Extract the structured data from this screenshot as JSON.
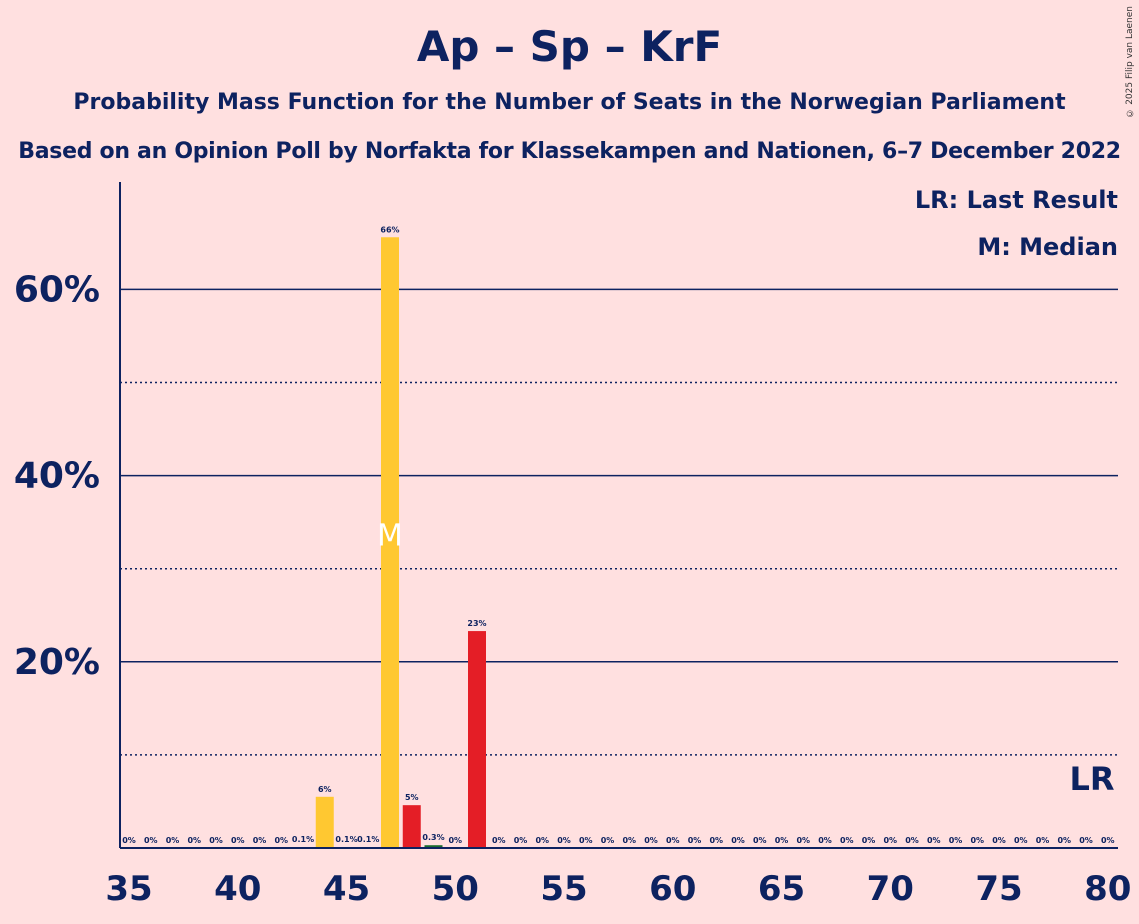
{
  "title": "Ap – Sp – KrF",
  "subtitle1": "Probability Mass Function for the Number of Seats in the Norwegian Parliament",
  "subtitle2": "Based on an Opinion Poll by Norfakta for Klassekampen and Nationen, 6–7 December 2022",
  "legend": {
    "last_result": "LR: Last Result",
    "median": "M: Median"
  },
  "copyright": "© 2025 Filip van Laenen",
  "colors": {
    "background": "#FFE0E0",
    "text": "#0D2260",
    "majority_bar": "#FFC831",
    "below_bar": "#E41E26",
    "minor_bar": "#1A6B2E"
  },
  "chart_data": {
    "type": "bar",
    "x": [
      35,
      36,
      37,
      38,
      39,
      40,
      41,
      42,
      43,
      44,
      45,
      46,
      47,
      48,
      49,
      50,
      51,
      52,
      53,
      54,
      55,
      56,
      57,
      58,
      59,
      60,
      61,
      62,
      63,
      64,
      65,
      66,
      67,
      68,
      69,
      70,
      71,
      72,
      73,
      74,
      75,
      76,
      77,
      78,
      79,
      80
    ],
    "values": [
      0,
      0,
      0,
      0,
      0,
      0,
      0,
      0,
      0.1,
      5.5,
      0.1,
      0.1,
      65.6,
      4.6,
      0.3,
      0,
      23.3,
      0,
      0,
      0,
      0,
      0,
      0,
      0,
      0,
      0,
      0,
      0,
      0,
      0,
      0,
      0,
      0,
      0,
      0,
      0,
      0,
      0,
      0,
      0,
      0,
      0,
      0,
      0,
      0,
      0
    ],
    "labels": [
      "0%",
      "0%",
      "0%",
      "0%",
      "0%",
      "0%",
      "0%",
      "0%",
      "0.1%",
      "6%",
      "0.1%",
      "0.1%",
      "66%",
      "5%",
      "0.3%",
      "0%",
      "23%",
      "0%",
      "0%",
      "0%",
      "0%",
      "0%",
      "0%",
      "0%",
      "0%",
      "0%",
      "0%",
      "0%",
      "0%",
      "0%",
      "0%",
      "0%",
      "0%",
      "0%",
      "0%",
      "0%",
      "0%",
      "0%",
      "0%",
      "0%",
      "0%",
      "0%",
      "0%",
      "0%",
      "0%",
      "0%"
    ],
    "bar_colors": [
      "#FFC831",
      "#FFC831",
      "#FFC831",
      "#FFC831",
      "#FFC831",
      "#FFC831",
      "#FFC831",
      "#FFC831",
      "#FFC831",
      "#FFC831",
      "#FFC831",
      "#FFC831",
      "#FFC831",
      "#E41E26",
      "#1A6B2E",
      "#E41E26",
      "#E41E26",
      "#E41E26",
      "#E41E26",
      "#E41E26",
      "#E41E26",
      "#E41E26",
      "#E41E26",
      "#E41E26",
      "#E41E26",
      "#E41E26",
      "#E41E26",
      "#E41E26",
      "#E41E26",
      "#E41E26",
      "#E41E26",
      "#E41E26",
      "#E41E26",
      "#E41E26",
      "#E41E26",
      "#E41E26",
      "#E41E26",
      "#E41E26",
      "#E41E26",
      "#E41E26",
      "#E41E26",
      "#E41E26",
      "#E41E26",
      "#E41E26",
      "#E41E26",
      "#E41E26"
    ],
    "xticks": [
      "35",
      "40",
      "45",
      "50",
      "55",
      "60",
      "65",
      "70",
      "75",
      "80"
    ],
    "yticks": [
      "20%",
      "40%",
      "60%"
    ],
    "xlim": [
      35,
      80
    ],
    "ylim": [
      0,
      70
    ],
    "median_seat": 47,
    "median_marker": "M",
    "last_result_seat": 79,
    "last_result_marker": "LR",
    "grid": "solid major lines at 20/40/60%, dotted minor lines at 10/30/50%"
  }
}
